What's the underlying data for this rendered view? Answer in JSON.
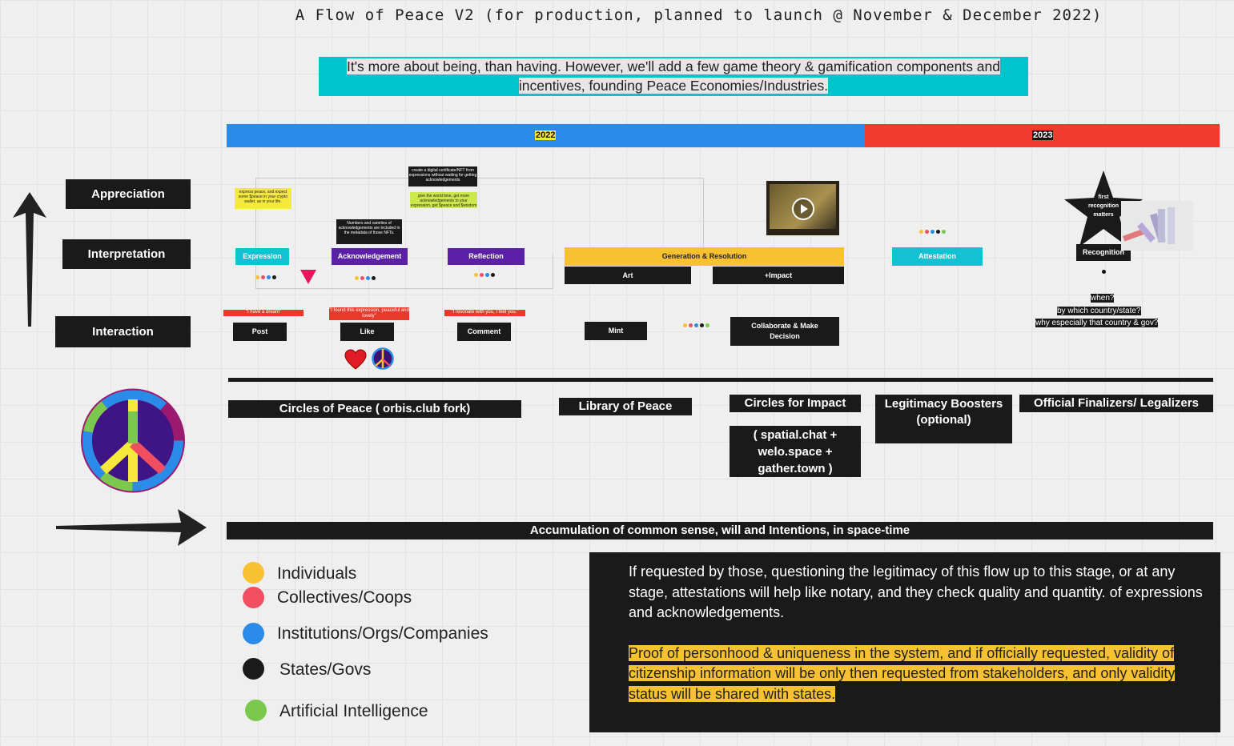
{
  "title": "A Flow of Peace V2 (for production, planned to launch @ November & December 2022)",
  "subtitle": {
    "line1": "It's more about being, than having. However, we'll add a few  game theory & gamification components and",
    "line2": "incentives, founding Peace Economies/Industries."
  },
  "timeline": {
    "year1": "2022",
    "year2": "2023",
    "color1": "#2b8be8",
    "color2": "#f03c2d"
  },
  "rows": {
    "appreciation": "Appreciation",
    "interpretation": "Interpretation",
    "interaction": "Interaction"
  },
  "notes": {
    "express": "express peace, and expect some $peace in your crypto wallet, as in your life.",
    "certificate": "create a digital certificate/NFT from expressions  without waiting for getting acknowledgements",
    "give_time": "give the world time, get more acknowledgements to your expression, get $peace and  $wisdom",
    "numbers": "Numbers and varieties of acknowledgements are included in the metadata of those NFTs."
  },
  "stages": {
    "expression": "Expression",
    "acknowledgement": "Acknowledgement",
    "reflection": "Reflection",
    "generation": "Generation & Resolution",
    "art": "Art",
    "impact": "+Impact",
    "attestation": "Attestation",
    "recognition": "Recognition",
    "recognition_star": "first recognition matters"
  },
  "actions": {
    "post": "Post",
    "like": "Like",
    "comment": "Comment",
    "mint": "Mint",
    "collaborate": "Collaborate & Make Decision",
    "post_quote": "\"I have a dream\"",
    "like_quote": "\"I found this expression, peaceful and lovely\"",
    "comment_quote": "\"I resonate with you, I feel you.\""
  },
  "questions": {
    "q1": "when?",
    "q2": "by which country/state?",
    "q3": "why especially that country & gov?"
  },
  "platforms": {
    "circles": "Circles of Peace ( orbis.club fork)",
    "library": "Library of Peace",
    "impact": "Circles for Impact",
    "impact_tools": "( spatial.chat + welo.space + gather.town )",
    "legitimacy": "Legitimacy Boosters (optional)",
    "official": "Official Finalizers/ Legalizers"
  },
  "accumulation": "Accumulation of common sense, will and Intentions, in space-time",
  "legend": [
    {
      "label": "Individuals",
      "color": "#f8c131"
    },
    {
      "label": "Collectives/Coops",
      "color": "#f24e61"
    },
    {
      "label": "Institutions/Orgs/Companies",
      "color": "#2b8be8"
    },
    {
      "label": "States/Govs",
      "color": "#1a1a1a"
    },
    {
      "label": "Artificial Intelligence",
      "color": "#7bc84f"
    }
  ],
  "info": {
    "p1": "If requested by those, questioning the legitimacy of this flow up to this stage, or at any stage, attestations will help like notary, and they check quality and quantity. of expressions and acknowledgements.",
    "p2": "Proof of personhood &  uniqueness in the system, and if officially requested, validity of citizenship information will be only then requested from stakeholders, and only validity status will be shared with states."
  },
  "icons": {
    "play": "play-icon",
    "heart": "heart-icon",
    "peace": "peace-icon",
    "star": "star-icon",
    "arrow_up": "arrow-up-icon",
    "arrow_right": "arrow-right-icon"
  }
}
